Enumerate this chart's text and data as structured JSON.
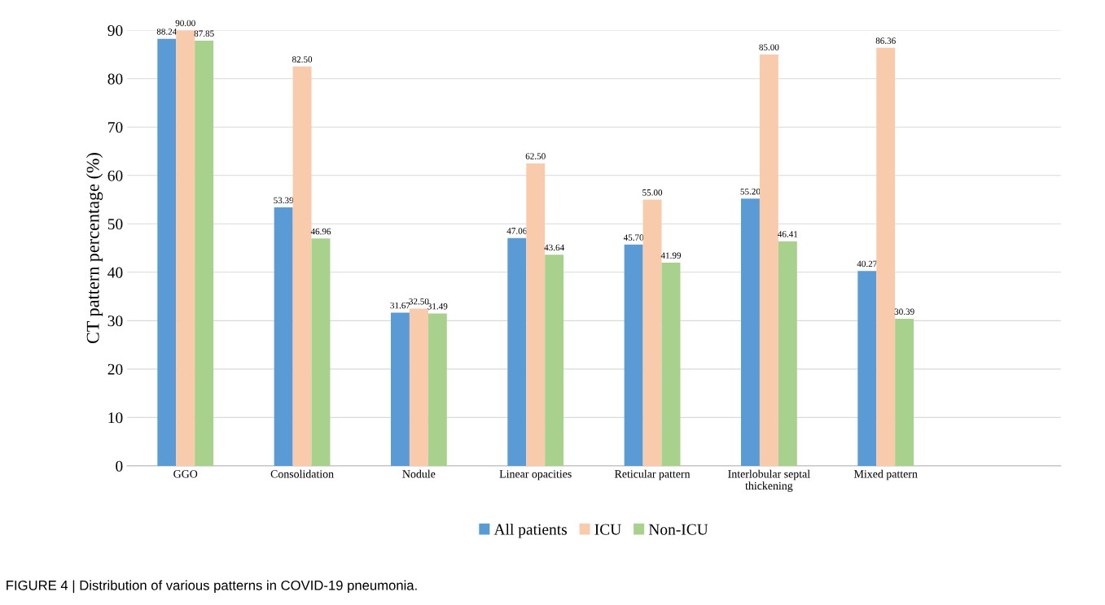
{
  "chart_data": {
    "type": "bar",
    "ylabel": "CT pattern percentage (%)",
    "categories": [
      "GGO",
      "Consolidation",
      "Nodule",
      "Linear opacities",
      "Reticular pattern",
      "Interlobular septal\nthickening",
      "Mixed pattern"
    ],
    "series": [
      {
        "name": "All patients",
        "color": "#5b9bd5",
        "values": [
          88.24,
          53.39,
          31.67,
          47.06,
          45.7,
          55.2,
          40.27
        ],
        "value_labels": [
          "88.24",
          "53.39",
          "31.67",
          "47.06",
          "45.70",
          "55.20",
          "40.27"
        ]
      },
      {
        "name": "ICU",
        "color": "#f8cbad",
        "values": [
          90.0,
          82.5,
          32.5,
          62.5,
          55.0,
          85.0,
          86.36
        ],
        "value_labels": [
          "90.00",
          "82.50",
          "32.50",
          "62.50",
          "55.00",
          "85.00",
          "86.36"
        ]
      },
      {
        "name": "Non-ICU",
        "color": "#a9d18e",
        "values": [
          87.85,
          46.96,
          31.49,
          43.64,
          41.99,
          46.41,
          30.39
        ],
        "value_labels": [
          "87.85",
          "46.96",
          "31.49",
          "43.64",
          "41.99",
          "46.41",
          "30.39"
        ]
      }
    ],
    "ylim": [
      0,
      90
    ],
    "yticks": [
      0,
      10,
      20,
      30,
      40,
      50,
      60,
      70,
      80,
      90
    ],
    "grid": "y",
    "legend": "bottom",
    "annotations": [
      "FIGURE 4 | Distribution of various patterns in COVID-19 pneumonia."
    ]
  }
}
